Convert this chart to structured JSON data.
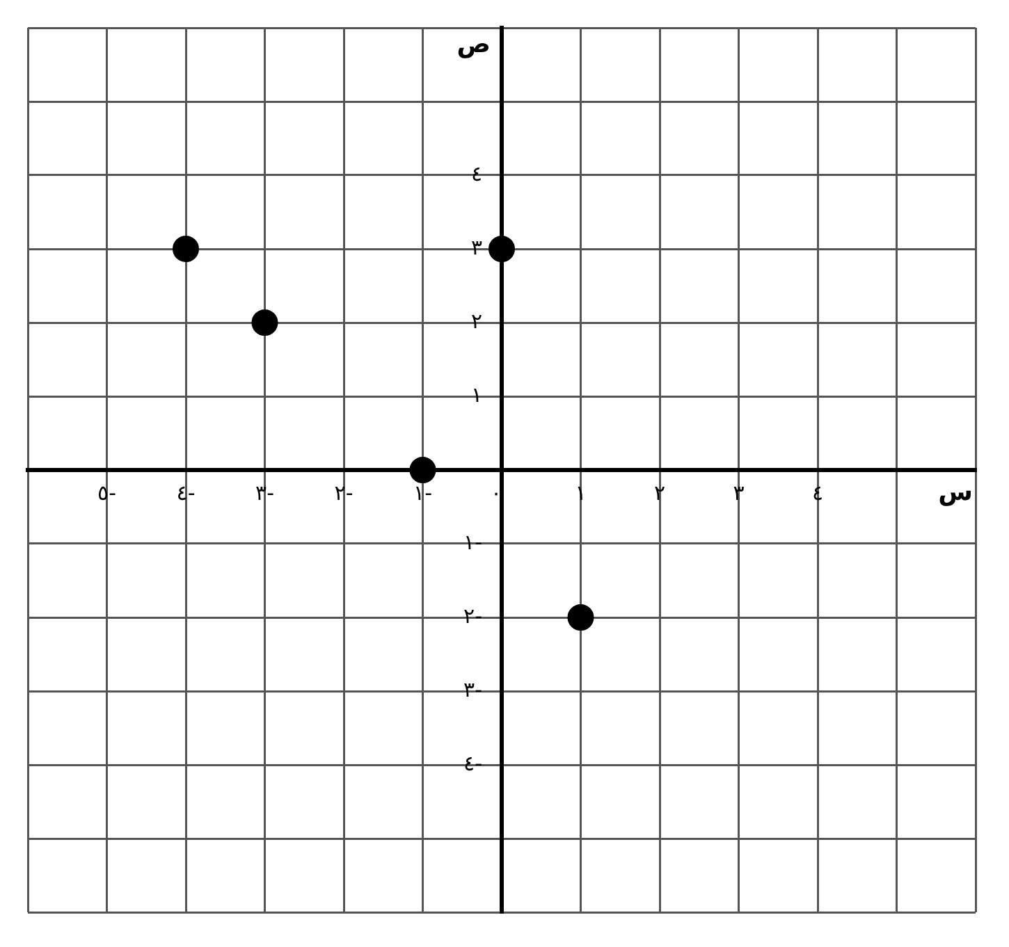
{
  "chart_data": {
    "type": "scatter",
    "xlabel": "س",
    "ylabel": "ص",
    "x": [
      -4,
      -3,
      -1,
      0,
      1
    ],
    "values": [
      3,
      2,
      0,
      3,
      -2
    ],
    "color": "#000000",
    "marker": "circle",
    "xlim": [
      -6,
      6
    ],
    "ylim": [
      -6,
      6
    ],
    "xticks": [
      {
        "value": -6,
        "label": null
      },
      {
        "value": -5,
        "label": "٥-"
      },
      {
        "value": -4,
        "label": "٤-"
      },
      {
        "value": -3,
        "label": "٣-"
      },
      {
        "value": -2,
        "label": "٢-"
      },
      {
        "value": -1,
        "label": "١-"
      },
      {
        "value": 0,
        "label": "٠"
      },
      {
        "value": 1,
        "label": "١"
      },
      {
        "value": 2,
        "label": "٢"
      },
      {
        "value": 3,
        "label": "٣"
      },
      {
        "value": 4,
        "label": "٤"
      },
      {
        "value": 5,
        "label": null
      },
      {
        "value": 6,
        "label": null
      }
    ],
    "yticks": [
      {
        "value": -6,
        "label": null
      },
      {
        "value": -5,
        "label": null
      },
      {
        "value": -4,
        "label": "٤-"
      },
      {
        "value": -3,
        "label": "٣-"
      },
      {
        "value": -2,
        "label": "٢-"
      },
      {
        "value": -1,
        "label": "١-"
      },
      {
        "value": 0,
        "label": null
      },
      {
        "value": 1,
        "label": "١"
      },
      {
        "value": 2,
        "label": "٢"
      },
      {
        "value": 3,
        "label": "٣"
      },
      {
        "value": 4,
        "label": "٤"
      },
      {
        "value": 5,
        "label": null
      },
      {
        "value": 6,
        "label": null
      }
    ],
    "grid": true
  }
}
